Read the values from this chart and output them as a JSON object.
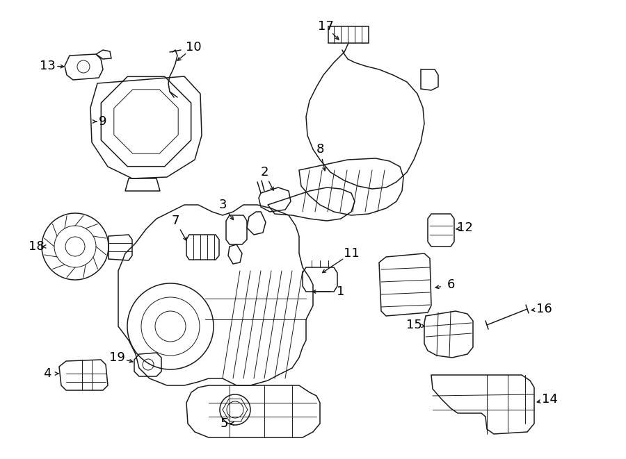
{
  "bg_color": "#ffffff",
  "line_color": "#1a1a1a",
  "fig_width": 9.0,
  "fig_height": 6.61,
  "dpi": 100,
  "lw": 1.1,
  "lw_thin": 0.7
}
